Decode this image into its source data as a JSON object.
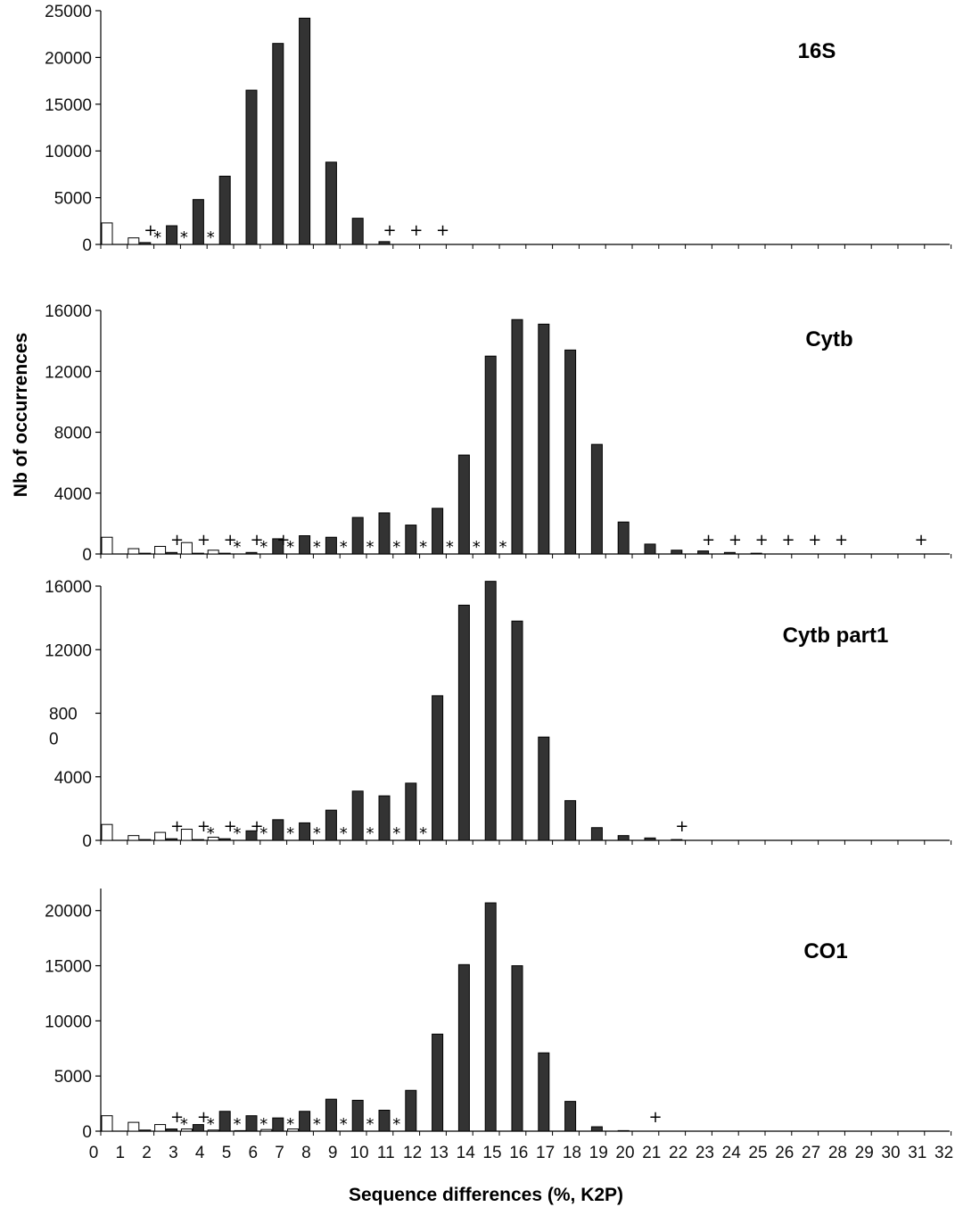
{
  "chart_data": {
    "type": "bar",
    "ylabel": "Nb of occurrences",
    "xlabel": "Sequence differences (%, K2P)",
    "x_ticks": [
      "0",
      "1",
      "2",
      "3",
      "4",
      "5",
      "6",
      "7",
      "8",
      "9",
      "10",
      "11",
      "12",
      "13",
      "14",
      "15",
      "16",
      "17",
      "18",
      "19",
      "20",
      "21",
      "22",
      "23",
      "24",
      "25",
      "26",
      "27",
      "28",
      "29",
      "30",
      "31",
      "32"
    ],
    "panels": [
      {
        "title": "16S",
        "ylim": [
          0,
          25000
        ],
        "yticks": [
          "0",
          "5000",
          "10000",
          "15000",
          "20000",
          "25000"
        ],
        "series": [
          {
            "style": "open",
            "x": [
              0,
              1
            ],
            "values": [
              2300,
              700
            ]
          },
          {
            "style": "filled",
            "x": [
              1,
              2,
              3,
              4,
              5,
              6,
              7,
              8,
              9,
              10
            ],
            "values": [
              200,
              2000,
              4800,
              7300,
              16500,
              21500,
              24200,
              8800,
              2800,
              300
            ]
          }
        ],
        "plus_at": [
          1,
          10,
          11,
          12
        ],
        "star_at": [
          2,
          3,
          4
        ]
      },
      {
        "title": "Cytb",
        "ylim": [
          0,
          16000
        ],
        "yticks": [
          "0",
          "4000",
          "8000",
          "12000",
          "16000"
        ],
        "series": [
          {
            "style": "open",
            "x": [
              0,
              1,
              2,
              3,
              4
            ],
            "values": [
              1100,
              350,
              500,
              750,
              250
            ]
          },
          {
            "style": "filled",
            "x": [
              1,
              2,
              3,
              4,
              5,
              6,
              7,
              8,
              9,
              10,
              11,
              12,
              13,
              14,
              15,
              16,
              17,
              18,
              19,
              20,
              21,
              22,
              23,
              24
            ],
            "values": [
              50,
              100,
              50,
              50,
              100,
              1000,
              1200,
              1100,
              2400,
              2700,
              1900,
              3000,
              6500,
              13000,
              15400,
              15100,
              13400,
              7200,
              2100,
              650,
              250,
              200,
              100,
              50
            ]
          }
        ],
        "plus_at": [
          2,
          3,
          4,
          5,
          6,
          22,
          23,
          24,
          25,
          26,
          27,
          30,
          32
        ],
        "star_at": [
          5,
          6,
          7,
          8,
          9,
          10,
          11,
          12,
          13,
          14,
          15
        ]
      },
      {
        "title": "Cytb part1",
        "ylim": [
          0,
          16000
        ],
        "yticks": [
          "0",
          "4000",
          "800\n0",
          "12000",
          "16000"
        ],
        "series": [
          {
            "style": "open",
            "x": [
              0,
              1,
              2,
              3,
              4
            ],
            "values": [
              1000,
              300,
              500,
              700,
              200
            ]
          },
          {
            "style": "filled",
            "x": [
              1,
              2,
              3,
              4,
              5,
              6,
              7,
              8,
              9,
              10,
              11,
              12,
              13,
              14,
              15,
              16,
              17,
              18,
              19,
              20,
              21
            ],
            "values": [
              50,
              100,
              50,
              100,
              600,
              1300,
              1100,
              1900,
              3100,
              2800,
              3600,
              9100,
              14800,
              16300,
              13800,
              6500,
              2500,
              800,
              300,
              150,
              50
            ]
          }
        ],
        "plus_at": [
          2,
          3,
          4,
          5,
          21
        ],
        "star_at": [
          4,
          5,
          6,
          7,
          8,
          9,
          10,
          11,
          12
        ]
      },
      {
        "title": "CO1",
        "ylim": [
          0,
          22000
        ],
        "yticks": [
          "0",
          "5000",
          "10000",
          "15000",
          "20000"
        ],
        "series": [
          {
            "style": "open",
            "x": [
              0,
              1,
              2,
              3,
              4,
              5,
              6,
              7
            ],
            "values": [
              1400,
              800,
              600,
              200,
              100,
              50,
              150,
              200
            ]
          },
          {
            "style": "filled",
            "x": [
              1,
              2,
              3,
              4,
              5,
              6,
              7,
              8,
              9,
              10,
              11,
              12,
              13,
              14,
              15,
              16,
              17,
              18,
              19
            ],
            "values": [
              100,
              200,
              600,
              1800,
              1400,
              1200,
              1800,
              2900,
              2800,
              1900,
              3700,
              8800,
              15100,
              20700,
              15000,
              7100,
              2700,
              400,
              50
            ]
          }
        ],
        "plus_at": [
          2,
          3,
          20
        ],
        "star_at": [
          3,
          4,
          5,
          6,
          7,
          8,
          9,
          10,
          11
        ]
      }
    ]
  },
  "colors": {
    "filled_bar": "#333333",
    "open_bar": "#ffffff",
    "axis": "#000000"
  }
}
